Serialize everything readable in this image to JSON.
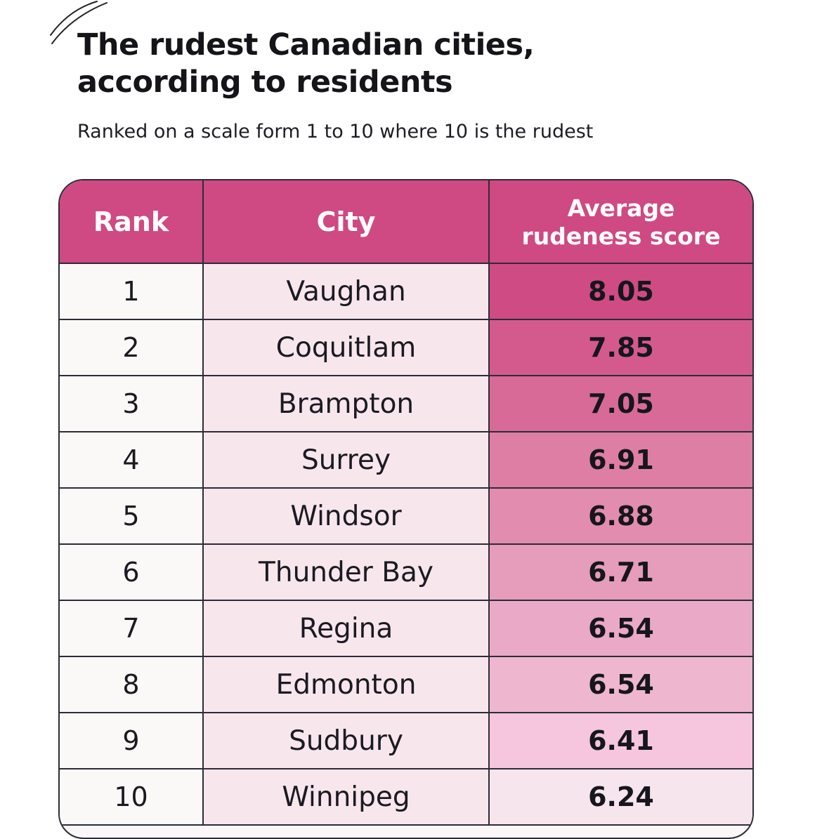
{
  "title_line1": "The rudest Canadian cities,",
  "title_line2": "according to residents",
  "subtitle": "Ranked on a scale form 1 to 10 where 10 is the rudest",
  "header": {
    "rank": "Rank",
    "city": "City",
    "score_line1": "Average",
    "score_line2": "rudeness score"
  },
  "colors": {
    "header": "#cf4982",
    "city_cell": "#f7e6ec",
    "rank_cell": "#fbf9f7",
    "score_gradient_top": "#cf4982",
    "score_gradient_bottom": "#f6e6ee",
    "border": "#2c2c38"
  },
  "rows": [
    {
      "rank": "1",
      "city": "Vaughan",
      "score": "8.05",
      "shade": "#cf4b83"
    },
    {
      "rank": "2",
      "city": "Coquitlam",
      "score": "7.85",
      "shade": "#d45a8e"
    },
    {
      "rank": "3",
      "city": "Brampton",
      "score": "7.05",
      "shade": "#d86a98"
    },
    {
      "rank": "4",
      "city": "Surrey",
      "score": "6.91",
      "shade": "#de7ea5"
    },
    {
      "rank": "5",
      "city": "Windsor",
      "score": "6.88",
      "shade": "#e28cb0"
    },
    {
      "rank": "6",
      "city": "Thunder Bay",
      "score": "6.71",
      "shade": "#e69cbb"
    },
    {
      "rank": "7",
      "city": "Regina",
      "score": "6.54",
      "shade": "#eaa9c6"
    },
    {
      "rank": "8",
      "city": "Edmonton",
      "score": "6.54",
      "shade": "#eeb6cf"
    },
    {
      "rank": "9",
      "city": "Sudbury",
      "score": "6.41",
      "shade": "#f5c6dd"
    },
    {
      "rank": "10",
      "city": "Winnipeg",
      "score": "6.24",
      "shade": "#f7e5ee"
    }
  ],
  "chart_data": {
    "type": "table",
    "title": "The rudest Canadian cities, according to residents",
    "subtitle": "Ranked on a scale form 1 to 10 where 10 is the rudest",
    "columns": [
      "Rank",
      "City",
      "Average rudeness score"
    ],
    "rows": [
      [
        1,
        "Vaughan",
        8.05
      ],
      [
        2,
        "Coquitlam",
        7.85
      ],
      [
        3,
        "Brampton",
        7.05
      ],
      [
        4,
        "Surrey",
        6.91
      ],
      [
        5,
        "Windsor",
        6.88
      ],
      [
        6,
        "Thunder Bay",
        6.71
      ],
      [
        7,
        "Regina",
        6.54
      ],
      [
        8,
        "Edmonton",
        6.54
      ],
      [
        9,
        "Sudbury",
        6.41
      ],
      [
        10,
        "Winnipeg",
        6.24
      ]
    ]
  }
}
